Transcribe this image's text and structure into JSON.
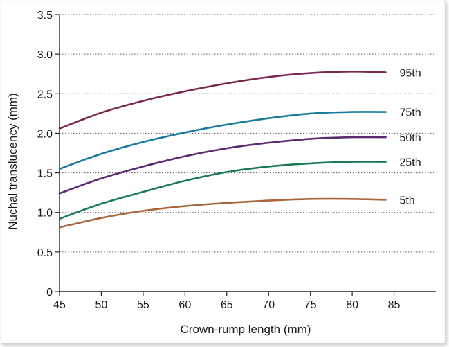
{
  "chart_data": {
    "type": "line",
    "title": "",
    "xlabel": "Crown-rump length (mm)",
    "ylabel": "Nuchal translucency (mm)",
    "xlim": [
      45,
      90
    ],
    "ylim": [
      0,
      3.5
    ],
    "x_ticks": [
      "45",
      "50",
      "55",
      "60",
      "65",
      "70",
      "75",
      "80",
      "85"
    ],
    "y_ticks": [
      "0",
      "0.5",
      "1.0",
      "1.5",
      "2.0",
      "2.5",
      "3.0",
      "3.5"
    ],
    "grid": "horizontal-dotted",
    "x": [
      45,
      50,
      55,
      60,
      65,
      70,
      75,
      80,
      84
    ],
    "series": [
      {
        "name": "95th",
        "color": "#7a2a52",
        "values": [
          2.06,
          2.26,
          2.41,
          2.53,
          2.63,
          2.71,
          2.76,
          2.78,
          2.77
        ]
      },
      {
        "name": "75th",
        "color": "#1a7a9e",
        "values": [
          1.55,
          1.74,
          1.89,
          2.01,
          2.11,
          2.19,
          2.25,
          2.27,
          2.27
        ]
      },
      {
        "name": "50th",
        "color": "#5a2a72",
        "values": [
          1.24,
          1.43,
          1.58,
          1.71,
          1.81,
          1.88,
          1.93,
          1.95,
          1.95
        ]
      },
      {
        "name": "25th",
        "color": "#1a7a52",
        "values": [
          0.92,
          1.11,
          1.26,
          1.4,
          1.51,
          1.58,
          1.62,
          1.64,
          1.64
        ]
      },
      {
        "name": "5th",
        "color": "#a8663a",
        "values": [
          0.81,
          0.93,
          1.02,
          1.08,
          1.12,
          1.15,
          1.17,
          1.17,
          1.16
        ]
      }
    ]
  }
}
